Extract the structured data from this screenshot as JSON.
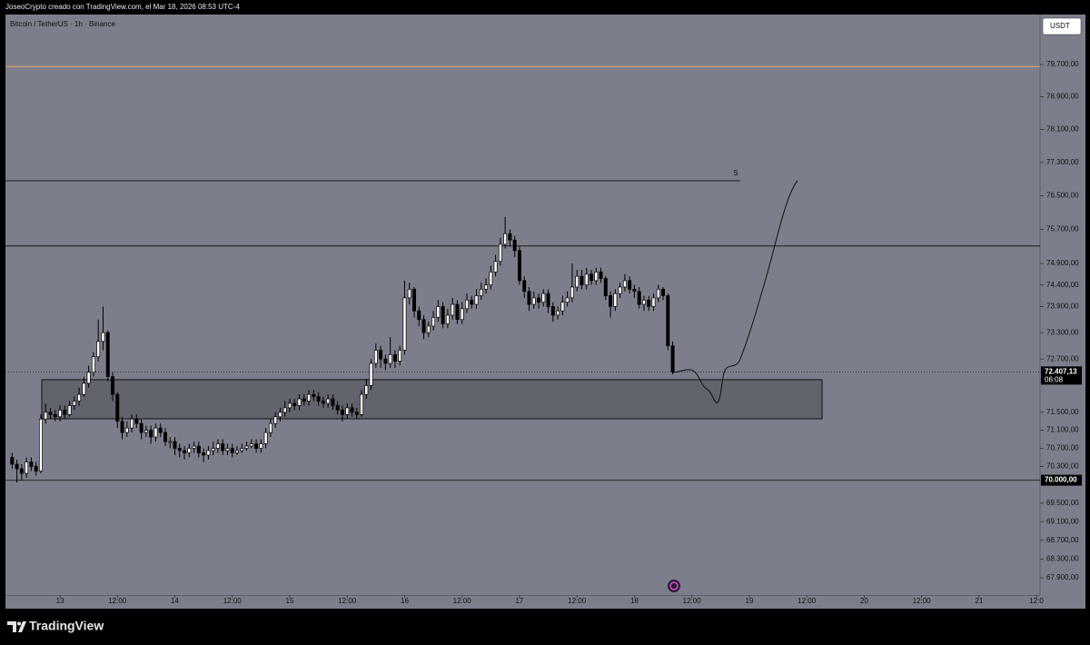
{
  "header": {
    "text": "JoseoCrypto creado con TradingView.com, el Mar 18, 2026 08:53 UTC-4"
  },
  "footer": {
    "brand": "TradingView"
  },
  "currency_button": "USDT",
  "chart_data": {
    "type": "candlestick",
    "title": "Bitcoin / TetherUS · 1h · Binance",
    "log_scale": true,
    "grid": false,
    "background": "#7c7f8b",
    "up_color": "#ffffff",
    "down_color": "#000000",
    "wick_color": "#000000",
    "x": [
      -10,
      -9,
      -8,
      -7,
      -6,
      -5,
      -4,
      -3,
      -2,
      -1,
      0,
      1,
      2,
      3,
      4,
      5,
      6,
      7,
      8,
      9,
      10,
      11,
      12,
      13,
      14,
      15,
      16,
      17,
      18,
      19,
      20,
      21,
      22,
      23,
      24,
      25,
      26,
      27,
      28,
      29,
      30,
      31,
      32,
      33,
      34,
      35,
      36,
      37,
      38,
      39,
      40,
      41,
      42,
      43,
      44,
      45,
      46,
      47,
      48,
      49,
      50,
      51,
      52,
      53,
      54,
      55,
      56,
      57,
      58,
      59,
      60,
      61,
      62,
      63,
      64,
      65,
      66,
      67,
      68,
      69,
      70,
      71,
      72,
      73,
      74,
      75,
      76,
      77,
      78,
      79,
      80,
      81,
      82,
      83,
      84,
      85,
      86,
      87,
      88,
      89,
      90,
      91,
      92,
      93,
      94,
      95,
      96,
      97,
      98,
      99,
      100,
      101,
      102,
      103,
      104,
      105,
      106,
      107,
      108,
      109,
      110,
      111,
      112,
      113,
      114,
      115,
      116,
      117,
      118,
      119,
      120,
      121,
      122,
      123,
      124,
      125,
      126,
      127,
      128
    ],
    "open": [
      70500,
      70350,
      70250,
      70150,
      70400,
      70300,
      70200,
      71350,
      71500,
      71450,
      71400,
      71550,
      71450,
      71650,
      71750,
      71900,
      72150,
      72400,
      72750,
      73100,
      73300,
      72300,
      71900,
      71300,
      71050,
      71150,
      71350,
      71250,
      71050,
      71100,
      70950,
      71150,
      71050,
      70850,
      70850,
      70700,
      70650,
      70600,
      70700,
      70750,
      70600,
      70550,
      70650,
      70700,
      70800,
      70650,
      70700,
      70600,
      70650,
      70700,
      70750,
      70800,
      70700,
      70800,
      71050,
      71250,
      71400,
      71500,
      71600,
      71700,
      71650,
      71800,
      71750,
      71900,
      71850,
      71750,
      71700,
      71800,
      71650,
      71550,
      71450,
      71600,
      71500,
      71450,
      71900,
      72100,
      72600,
      72900,
      72700,
      72600,
      72800,
      72650,
      72900,
      74100,
      74300,
      73800,
      73600,
      73300,
      73450,
      73650,
      73900,
      73500,
      73700,
      73950,
      73600,
      73850,
      74050,
      73950,
      74150,
      74300,
      74400,
      74700,
      74950,
      75350,
      75600,
      75450,
      75200,
      74500,
      74250,
      73950,
      74100,
      74000,
      74200,
      73900,
      73700,
      73800,
      74000,
      74100,
      74350,
      74600,
      74400,
      74650,
      74500,
      74700,
      74550,
      74150,
      73900,
      74200,
      74350,
      74500,
      74300,
      74250,
      73950,
      74050,
      73900,
      74100,
      74300,
      74150,
      73000
    ],
    "high": [
      70600,
      70450,
      70350,
      70500,
      70500,
      70400,
      71450,
      71700,
      71600,
      71550,
      71650,
      71650,
      71750,
      71850,
      72050,
      72300,
      72550,
      72850,
      73600,
      73900,
      73350,
      72400,
      71950,
      71400,
      71300,
      71450,
      71450,
      71350,
      71200,
      71200,
      71250,
      71250,
      71150,
      70950,
      70950,
      70800,
      70750,
      70800,
      70850,
      70850,
      70700,
      70750,
      70850,
      70900,
      70900,
      70800,
      70800,
      70750,
      70800,
      70850,
      70900,
      70900,
      70900,
      71150,
      71350,
      71500,
      71600,
      71750,
      71800,
      71800,
      71900,
      71900,
      72000,
      72000,
      71950,
      71850,
      71900,
      71900,
      71750,
      71650,
      71700,
      71700,
      71600,
      72000,
      72250,
      72700,
      73050,
      73000,
      72800,
      73200,
      72900,
      73000,
      74500,
      74450,
      74350,
      73900,
      73700,
      73550,
      73800,
      74050,
      74000,
      73850,
      74100,
      74050,
      74000,
      74200,
      74150,
      74300,
      74450,
      74550,
      74850,
      75100,
      75500,
      76000,
      75700,
      75550,
      75300,
      74600,
      74350,
      74250,
      74200,
      74300,
      74300,
      74000,
      73900,
      74150,
      74250,
      74900,
      74750,
      74750,
      74800,
      74750,
      74800,
      74800,
      74600,
      74250,
      74300,
      74450,
      74650,
      74600,
      74400,
      74350,
      74150,
      74150,
      74200,
      74400,
      74350,
      74200,
      73100
    ],
    "low": [
      70250,
      69950,
      70000,
      70050,
      70200,
      70100,
      70150,
      71250,
      71350,
      71300,
      71300,
      71350,
      71400,
      71550,
      71650,
      71850,
      72050,
      72300,
      72650,
      72900,
      72200,
      71750,
      71150,
      70900,
      70950,
      71050,
      71150,
      70900,
      70950,
      70800,
      70850,
      70950,
      70750,
      70700,
      70550,
      70500,
      70450,
      70500,
      70600,
      70500,
      70400,
      70450,
      70550,
      70600,
      70550,
      70550,
      70500,
      70550,
      70600,
      70650,
      70700,
      70600,
      70600,
      70700,
      70950,
      71150,
      71300,
      71400,
      71500,
      71550,
      71550,
      71650,
      71650,
      71750,
      71650,
      71600,
      71600,
      71550,
      71450,
      71300,
      71350,
      71400,
      71350,
      71400,
      71800,
      72000,
      72500,
      72500,
      72450,
      72500,
      72500,
      72550,
      72800,
      73950,
      73650,
      73450,
      73150,
      73200,
      73350,
      73550,
      73400,
      73400,
      73600,
      73500,
      73500,
      73750,
      73850,
      73850,
      74050,
      74200,
      74300,
      74600,
      74850,
      75250,
      75300,
      75050,
      74400,
      74100,
      73800,
      73850,
      73850,
      73900,
      73750,
      73550,
      73600,
      73700,
      73900,
      74000,
      74250,
      74300,
      74300,
      74400,
      74400,
      74450,
      74050,
      73650,
      73800,
      74100,
      74250,
      74200,
      74100,
      73850,
      73800,
      73800,
      73800,
      74000,
      74050,
      72900,
      72350
    ],
    "close": [
      70350,
      70250,
      70150,
      70400,
      70300,
      70200,
      71350,
      71500,
      71450,
      71400,
      71550,
      71450,
      71650,
      71750,
      71900,
      72150,
      72400,
      72750,
      73100,
      73300,
      72300,
      71900,
      71300,
      71050,
      71150,
      71350,
      71250,
      71050,
      71100,
      70950,
      71150,
      71050,
      70850,
      70850,
      70700,
      70650,
      70600,
      70700,
      70750,
      70600,
      70550,
      70650,
      70700,
      70800,
      70650,
      70700,
      70600,
      70650,
      70700,
      70750,
      70800,
      70700,
      70800,
      71050,
      71250,
      71400,
      71500,
      71600,
      71700,
      71650,
      71800,
      71750,
      71900,
      71850,
      71750,
      71700,
      71800,
      71650,
      71550,
      71450,
      71600,
      71500,
      71450,
      71900,
      72100,
      72600,
      72900,
      72700,
      72600,
      72800,
      72650,
      72900,
      74100,
      74300,
      73800,
      73600,
      73300,
      73450,
      73650,
      73900,
      73500,
      73700,
      73950,
      73600,
      73850,
      74050,
      73950,
      74150,
      74300,
      74400,
      74700,
      74950,
      75350,
      75600,
      75450,
      75200,
      74500,
      74250,
      73950,
      74100,
      74000,
      74200,
      73900,
      73700,
      73800,
      74000,
      74100,
      74350,
      74600,
      74400,
      74650,
      74500,
      74700,
      74550,
      74150,
      73900,
      74200,
      74350,
      74500,
      74300,
      74250,
      73950,
      74050,
      73900,
      74100,
      74300,
      74150,
      73000,
      72407.13
    ],
    "last_price": {
      "label": "72.407,13",
      "countdown": "06:08"
    },
    "xlim": [
      -11.39,
      204.74
    ],
    "xticks": [
      {
        "value": 0,
        "label": "13"
      },
      {
        "value": 12,
        "label": "12:00"
      },
      {
        "value": 24,
        "label": "14"
      },
      {
        "value": 36,
        "label": "12:00"
      },
      {
        "value": 48,
        "label": "15"
      },
      {
        "value": 60,
        "label": "12:00"
      },
      {
        "value": 72,
        "label": "16"
      },
      {
        "value": 84,
        "label": "12:00"
      },
      {
        "value": 96,
        "label": "17"
      },
      {
        "value": 108,
        "label": "12:00"
      },
      {
        "value": 120,
        "label": "18"
      },
      {
        "value": 132,
        "label": "12:00"
      },
      {
        "value": 144,
        "label": "19"
      },
      {
        "value": 156,
        "label": "12:00"
      },
      {
        "value": 168,
        "label": "20"
      },
      {
        "value": 180,
        "label": "12:00"
      },
      {
        "value": 192,
        "label": "21"
      },
      {
        "value": 204,
        "label": "12:0"
      }
    ],
    "ylim": [
      67535,
      80953
    ],
    "yticks": [
      {
        "value": 79700,
        "label": "79.700,00"
      },
      {
        "value": 78900,
        "label": "78.900,00"
      },
      {
        "value": 78100,
        "label": "78.100,00"
      },
      {
        "value": 77300,
        "label": "77.300,00"
      },
      {
        "value": 76500,
        "label": "76.500,00"
      },
      {
        "value": 75700,
        "label": "75.700,00"
      },
      {
        "value": 74900,
        "label": "74.900,00"
      },
      {
        "value": 74400,
        "label": "74.400,00"
      },
      {
        "value": 73900,
        "label": "73.900,00"
      },
      {
        "value": 73300,
        "label": "73.300,00"
      },
      {
        "value": 72700,
        "label": "72.700,00"
      },
      {
        "value": 71500,
        "label": "71.500,00"
      },
      {
        "value": 71100,
        "label": "71.100,00"
      },
      {
        "value": 70700,
        "label": "70.700,00"
      },
      {
        "value": 70300,
        "label": "70.300,00"
      },
      {
        "value": 69500,
        "label": "69.500,00"
      },
      {
        "value": 69100,
        "label": "69.100,00"
      },
      {
        "value": 68700,
        "label": "68.700,00"
      },
      {
        "value": 68300,
        "label": "68.300,00"
      },
      {
        "value": 67900,
        "label": "67.900,00"
      }
    ],
    "levels": [
      {
        "value": 79650,
        "color": "#f0a060"
      },
      {
        "value": 76860,
        "color": "#1a1a1a",
        "x_end": 142.1,
        "label": "S"
      },
      {
        "value": 75310,
        "color": "#1a1a1a"
      },
      {
        "value": 70000,
        "color": "#2a2a2a",
        "label": "70.000,00"
      }
    ],
    "zone": {
      "x": [
        -3.8,
        159.2
      ],
      "y": [
        71355,
        72232
      ],
      "color": "#4a4c55"
    }
  }
}
